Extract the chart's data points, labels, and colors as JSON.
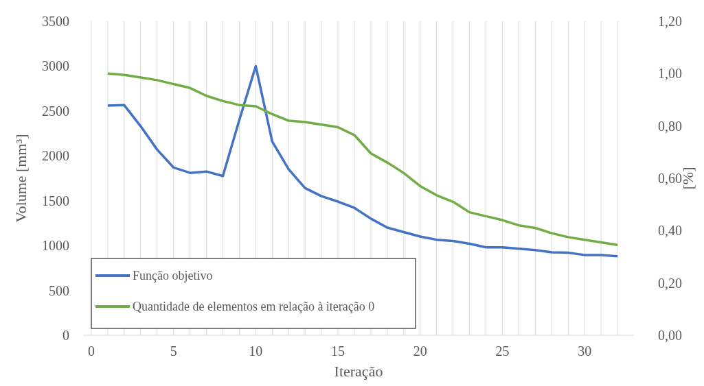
{
  "chart_data": {
    "type": "line",
    "xlabel": "Iteração",
    "ylabel": "Volume [mm³]",
    "y2label": "[%]",
    "x": [
      1,
      2,
      3,
      4,
      5,
      6,
      7,
      8,
      9,
      10,
      11,
      12,
      13,
      14,
      15,
      16,
      17,
      18,
      19,
      20,
      21,
      22,
      23,
      24,
      25,
      26,
      27,
      28,
      29,
      30,
      31,
      32
    ],
    "series": [
      {
        "name": "Função objetivo",
        "color": "#4472c4",
        "values": [
          2560,
          2565,
          2330,
          2070,
          1870,
          1810,
          1825,
          1775,
          2400,
          3000,
          2160,
          1850,
          1640,
          1550,
          1490,
          1420,
          1300,
          1200,
          1150,
          1100,
          1065,
          1050,
          1020,
          980,
          980,
          965,
          950,
          925,
          920,
          895,
          895,
          880
        ]
      },
      {
        "name": "Quantidade de elementos em relação à iteração 0",
        "color": "#70ad47",
        "axis": "y2",
        "values": [
          1.0,
          0.995,
          0.985,
          0.975,
          0.96,
          0.945,
          0.915,
          0.895,
          0.88,
          0.875,
          0.845,
          0.82,
          0.815,
          0.805,
          0.795,
          0.765,
          0.695,
          0.66,
          0.62,
          0.57,
          0.535,
          0.51,
          0.47,
          0.455,
          0.44,
          0.42,
          0.41,
          0.39,
          0.375,
          0.365,
          0.355,
          0.345
        ]
      }
    ],
    "xlim": [
      -0.5,
      33
    ],
    "xticks": [
      0,
      {
        "value": 1,
        "label": null
      },
      {
        "value": 2,
        "label": null
      },
      {
        "value": 3,
        "label": null
      },
      {
        "value": 4,
        "label": null
      },
      5,
      {
        "value": 6,
        "label": null
      },
      {
        "value": 7,
        "label": null
      },
      {
        "value": 8,
        "label": null
      },
      {
        "value": 9,
        "label": null
      },
      10,
      {
        "value": 11,
        "label": null
      },
      {
        "value": 12,
        "label": null
      },
      {
        "value": 13,
        "label": null
      },
      {
        "value": 14,
        "label": null
      },
      15,
      {
        "value": 16,
        "label": null
      },
      {
        "value": 17,
        "label": null
      },
      {
        "value": 18,
        "label": null
      },
      {
        "value": 19,
        "label": null
      },
      20,
      {
        "value": 21,
        "label": null
      },
      {
        "value": 22,
        "label": null
      },
      {
        "value": 23,
        "label": null
      },
      {
        "value": 24,
        "label": null
      },
      25,
      {
        "value": 26,
        "label": null
      },
      {
        "value": 27,
        "label": null
      },
      {
        "value": 28,
        "label": null
      },
      {
        "value": 29,
        "label": null
      },
      30,
      {
        "value": 31,
        "label": null
      },
      {
        "value": 32,
        "label": null
      }
    ],
    "ylim": [
      0,
      3500
    ],
    "yticks": [
      0,
      500,
      1000,
      1500,
      2000,
      2500,
      3000,
      3500
    ],
    "y2lim": [
      0,
      1.2
    ],
    "y2ticks": [
      {
        "value": 0,
        "label": "0,00"
      },
      {
        "value": 0.2,
        "label": "0,20"
      },
      {
        "value": 0.4,
        "label": "0,40"
      },
      {
        "value": 0.6,
        "label": "0,60"
      },
      {
        "value": 0.8,
        "label": "0,80"
      },
      {
        "value": 1.0,
        "label": "1,00"
      },
      {
        "value": 1.2,
        "label": "1,20"
      }
    ],
    "grid": "x",
    "legend": "bottom left",
    "marker": "none",
    "line_style": "solid"
  }
}
